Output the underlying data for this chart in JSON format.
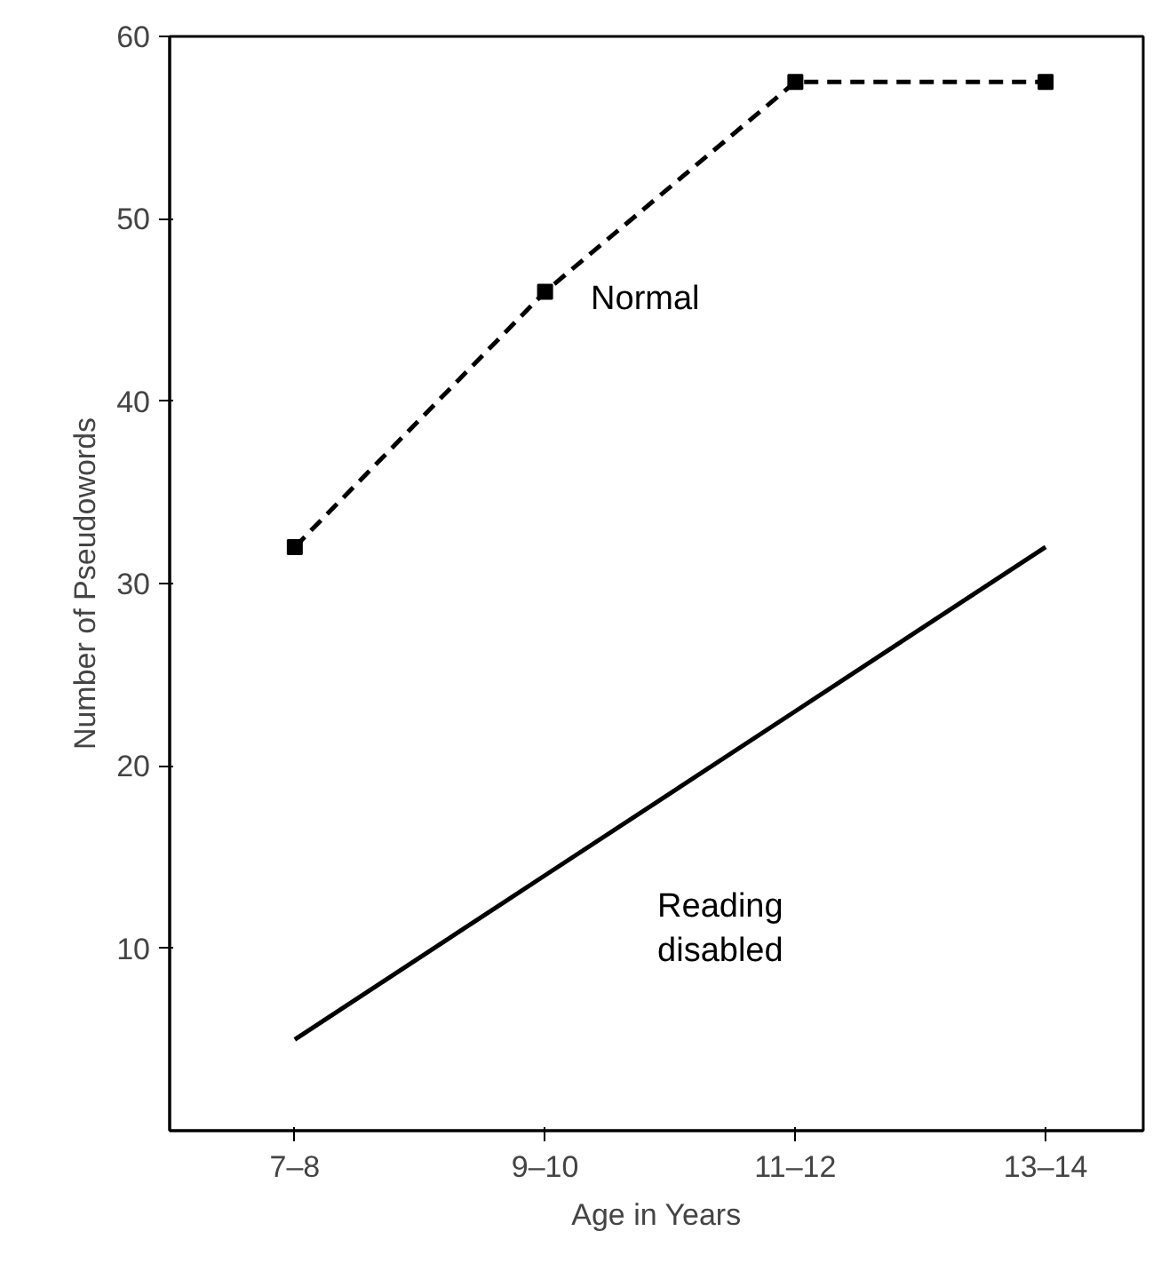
{
  "chart_data": {
    "type": "line",
    "xlabel": "Age in Years",
    "ylabel": "Number of Pseudowords",
    "categories": [
      "7–8",
      "9–10",
      "11–12",
      "13–14"
    ],
    "ylim": [
      0,
      60
    ],
    "yticks": [
      10,
      20,
      30,
      40,
      50,
      60
    ],
    "grid": false,
    "series": [
      {
        "name": "Normal",
        "color": "#000000",
        "values": [
          32,
          46,
          57.5,
          57.5
        ],
        "line_style": "dashed",
        "marker": "square"
      },
      {
        "name": "Reading disabled",
        "color": "#000000",
        "values": [
          5,
          14,
          23,
          32
        ],
        "line_style": "solid",
        "marker": "none"
      }
    ]
  }
}
